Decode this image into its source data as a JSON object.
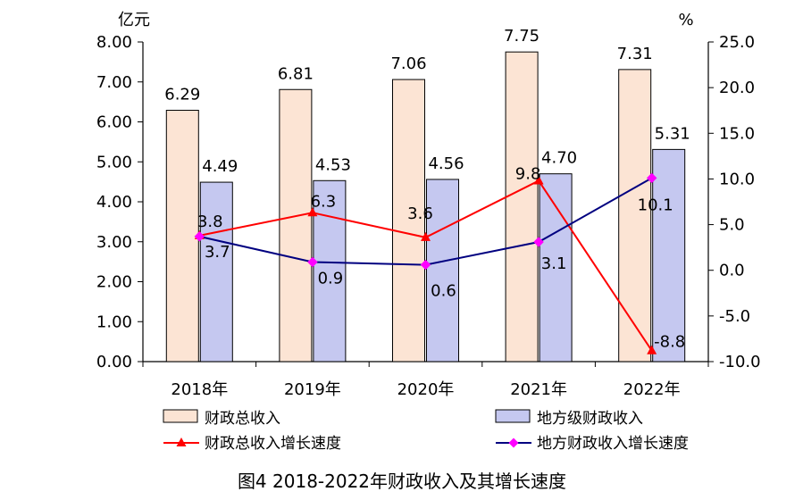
{
  "chart_data": {
    "type": "bar",
    "title": "图4 2018-2022年财政收入及其增长速度",
    "categories": [
      "2018年",
      "2019年",
      "2020年",
      "2021年",
      "2022年"
    ],
    "left_axis": {
      "unit": "亿元",
      "min": 0,
      "max": 8,
      "step": 1,
      "tick_labels": [
        "0.00",
        "1.00",
        "2.00",
        "3.00",
        "4.00",
        "5.00",
        "6.00",
        "7.00",
        "8.00"
      ]
    },
    "right_axis": {
      "unit": "%",
      "min": -10,
      "max": 25,
      "step": 5,
      "tick_labels": [
        "-10.0",
        "-5.0",
        "0.0",
        "5.0",
        "10.0",
        "15.0",
        "20.0",
        "25.0"
      ]
    },
    "series": [
      {
        "name": "财政总收入",
        "kind": "bar",
        "axis": "left",
        "fill": "#FCE4D4",
        "stroke": "#000000",
        "values": [
          6.29,
          6.81,
          7.06,
          7.75,
          7.31
        ],
        "labels": [
          "6.29",
          "6.81",
          "7.06",
          "7.75",
          "7.31"
        ]
      },
      {
        "name": "地方级财政收入",
        "kind": "bar",
        "axis": "left",
        "fill": "#C5C8F0",
        "stroke": "#000000",
        "values": [
          4.49,
          4.53,
          4.56,
          4.7,
          5.31
        ],
        "labels": [
          "4.49",
          "4.53",
          "4.56",
          "4.70",
          "5.31"
        ]
      },
      {
        "name": "财政总收入增长速度",
        "kind": "line",
        "axis": "right",
        "color": "#FF0000",
        "marker": "triangle",
        "values": [
          3.8,
          6.3,
          3.6,
          9.8,
          -8.8
        ],
        "labels": [
          "3.8",
          "6.3",
          "3.6",
          "9.8",
          "-8.8"
        ]
      },
      {
        "name": "地方财政收入增长速度",
        "kind": "line",
        "axis": "right",
        "color": "#000080",
        "marker": "diamond",
        "marker_color": "#FF00FF",
        "values": [
          3.7,
          0.9,
          0.6,
          3.1,
          10.1
        ],
        "labels": [
          "3.7",
          "0.9",
          "0.6",
          "3.1",
          "10.1"
        ]
      }
    ]
  }
}
